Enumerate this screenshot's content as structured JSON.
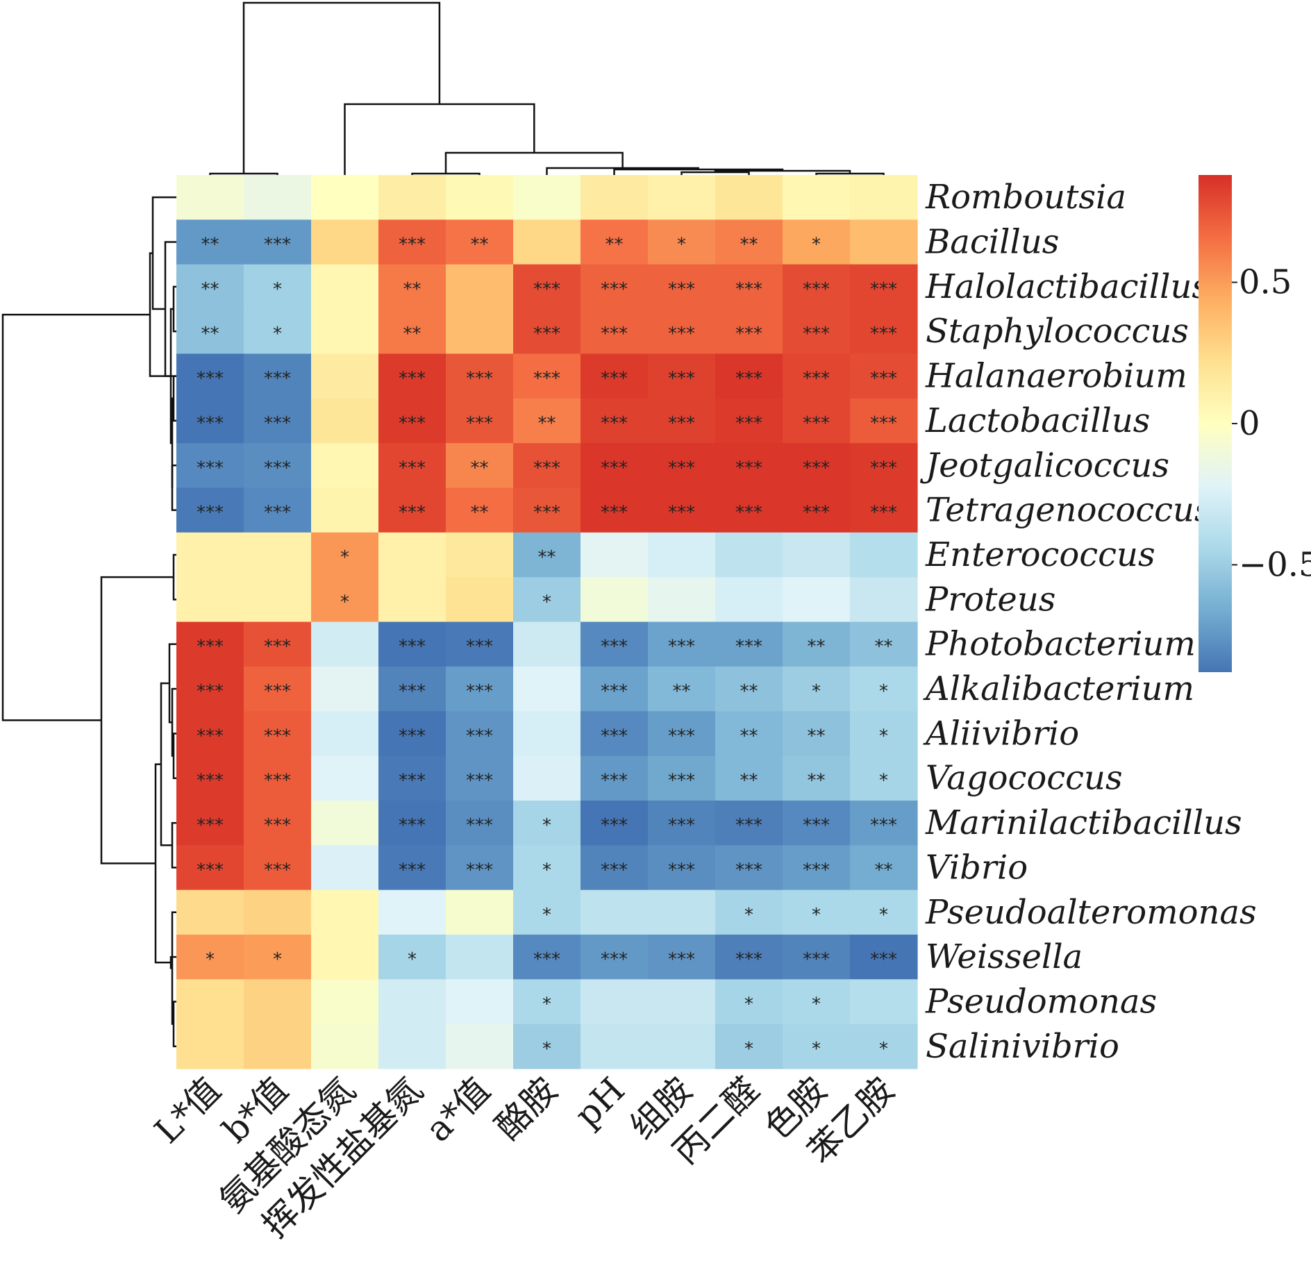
{
  "chart_data": {
    "type": "heatmap",
    "columns": [
      "L*值",
      "b*值",
      "氨基酸态氮",
      "挥发性盐基氮",
      "a*值",
      "酪胺",
      "pH",
      "组胺",
      "丙二醛",
      "色胺",
      "苯乙胺"
    ],
    "rows": [
      "Romboutsia",
      "Bacillus",
      "Halolactibacillus",
      "Staphylococcus",
      "Halanaerobium",
      "Lactobacillus",
      "Jeotgalicoccus",
      "Tetragenococcus",
      "Enterococcus",
      "Proteus",
      "Photobacterium",
      "Alkalibacterium",
      "Aliivibrio",
      "Vagococcus",
      "Marinilactibacillus",
      "Vibrio",
      "Pseudoalteromonas",
      "Weissella",
      "Pseudomonas",
      "Salinivibrio"
    ],
    "values": [
      [
        -0.08,
        -0.14,
        0.0,
        0.12,
        0.04,
        -0.04,
        0.14,
        0.1,
        0.18,
        0.06,
        0.08
      ],
      [
        -0.74,
        -0.74,
        0.26,
        0.7,
        0.64,
        0.26,
        0.64,
        0.56,
        0.6,
        0.46,
        0.38
      ],
      [
        -0.56,
        -0.48,
        0.06,
        0.62,
        0.38,
        0.78,
        0.7,
        0.7,
        0.7,
        0.78,
        0.8
      ],
      [
        -0.56,
        -0.48,
        0.06,
        0.62,
        0.38,
        0.78,
        0.7,
        0.7,
        0.7,
        0.78,
        0.8
      ],
      [
        -0.88,
        -0.82,
        0.14,
        0.84,
        0.74,
        0.66,
        0.84,
        0.82,
        0.86,
        0.8,
        0.78
      ],
      [
        -0.88,
        -0.82,
        0.18,
        0.84,
        0.74,
        0.6,
        0.82,
        0.82,
        0.84,
        0.8,
        0.72
      ],
      [
        -0.8,
        -0.78,
        0.06,
        0.8,
        0.58,
        0.76,
        0.86,
        0.86,
        0.86,
        0.86,
        0.84
      ],
      [
        -0.86,
        -0.8,
        0.08,
        0.8,
        0.66,
        0.74,
        0.86,
        0.86,
        0.86,
        0.86,
        0.84
      ],
      [
        0.1,
        0.1,
        0.52,
        0.1,
        0.16,
        -0.62,
        -0.2,
        -0.26,
        -0.36,
        -0.32,
        -0.4
      ],
      [
        0.1,
        0.1,
        0.52,
        0.1,
        0.2,
        -0.5,
        -0.1,
        -0.18,
        -0.26,
        -0.22,
        -0.32
      ],
      [
        0.84,
        0.76,
        -0.28,
        -0.88,
        -0.86,
        -0.3,
        -0.8,
        -0.7,
        -0.7,
        -0.62,
        -0.56
      ],
      [
        0.84,
        0.7,
        -0.2,
        -0.82,
        -0.72,
        -0.22,
        -0.7,
        -0.6,
        -0.56,
        -0.5,
        -0.44
      ],
      [
        0.84,
        0.72,
        -0.26,
        -0.88,
        -0.76,
        -0.26,
        -0.8,
        -0.72,
        -0.6,
        -0.56,
        -0.46
      ],
      [
        0.84,
        0.72,
        -0.22,
        -0.86,
        -0.76,
        -0.24,
        -0.74,
        -0.68,
        -0.6,
        -0.54,
        -0.46
      ],
      [
        0.84,
        0.72,
        -0.1,
        -0.88,
        -0.78,
        -0.46,
        -0.88,
        -0.82,
        -0.84,
        -0.8,
        -0.72
      ],
      [
        0.8,
        0.72,
        -0.24,
        -0.86,
        -0.76,
        -0.44,
        -0.82,
        -0.78,
        -0.76,
        -0.72,
        -0.66
      ],
      [
        0.24,
        0.28,
        0.06,
        -0.22,
        -0.06,
        -0.44,
        -0.36,
        -0.36,
        -0.46,
        -0.44,
        -0.44
      ],
      [
        0.52,
        0.5,
        0.06,
        -0.46,
        -0.34,
        -0.8,
        -0.74,
        -0.76,
        -0.84,
        -0.82,
        -0.88
      ],
      [
        0.22,
        0.28,
        -0.04,
        -0.28,
        -0.22,
        -0.44,
        -0.32,
        -0.32,
        -0.46,
        -0.44,
        -0.4
      ],
      [
        0.22,
        0.28,
        -0.06,
        -0.28,
        -0.18,
        -0.5,
        -0.34,
        -0.34,
        -0.5,
        -0.46,
        -0.46
      ]
    ],
    "significance": [
      [
        "",
        "",
        "",
        "",
        "",
        "",
        "",
        "",
        "",
        "",
        ""
      ],
      [
        "**",
        "***",
        "",
        "***",
        "**",
        "",
        "**",
        "*",
        "**",
        "*",
        ""
      ],
      [
        "**",
        "*",
        "",
        "**",
        "",
        "***",
        "***",
        "***",
        "***",
        "***",
        "***"
      ],
      [
        "**",
        "*",
        "",
        "**",
        "",
        "***",
        "***",
        "***",
        "***",
        "***",
        "***"
      ],
      [
        "***",
        "***",
        "",
        "***",
        "***",
        "***",
        "***",
        "***",
        "***",
        "***",
        "***"
      ],
      [
        "***",
        "***",
        "",
        "***",
        "***",
        "**",
        "***",
        "***",
        "***",
        "***",
        "***"
      ],
      [
        "***",
        "***",
        "",
        "***",
        "**",
        "***",
        "***",
        "***",
        "***",
        "***",
        "***"
      ],
      [
        "***",
        "***",
        "",
        "***",
        "**",
        "***",
        "***",
        "***",
        "***",
        "***",
        "***"
      ],
      [
        "",
        "",
        "*",
        "",
        "",
        "**",
        "",
        "",
        "",
        "",
        ""
      ],
      [
        "",
        "",
        "*",
        "",
        "",
        "*",
        "",
        "",
        "",
        "",
        ""
      ],
      [
        "***",
        "***",
        "",
        "***",
        "***",
        "",
        "***",
        "***",
        "***",
        "**",
        "**"
      ],
      [
        "***",
        "***",
        "",
        "***",
        "***",
        "",
        "***",
        "**",
        "**",
        "*",
        "*"
      ],
      [
        "***",
        "***",
        "",
        "***",
        "***",
        "",
        "***",
        "***",
        "**",
        "**",
        "*"
      ],
      [
        "***",
        "***",
        "",
        "***",
        "***",
        "",
        "***",
        "***",
        "**",
        "**",
        "*"
      ],
      [
        "***",
        "***",
        "",
        "***",
        "***",
        "*",
        "***",
        "***",
        "***",
        "***",
        "***"
      ],
      [
        "***",
        "***",
        "",
        "***",
        "***",
        "*",
        "***",
        "***",
        "***",
        "***",
        "**"
      ],
      [
        "",
        "",
        "",
        "",
        "",
        "*",
        "",
        "",
        "*",
        "*",
        "*"
      ],
      [
        "*",
        "*",
        "",
        "*",
        "",
        "***",
        "***",
        "***",
        "***",
        "***",
        "***"
      ],
      [
        "",
        "",
        "",
        "",
        "",
        "*",
        "",
        "",
        "*",
        "*",
        ""
      ],
      [
        "",
        "",
        "",
        "",
        "",
        "*",
        "",
        "",
        "*",
        "*",
        "*"
      ]
    ],
    "colorbar": {
      "range": [
        -0.88,
        0.88
      ],
      "ticks": [
        0.5,
        0,
        -0.5
      ],
      "tick_labels": [
        "0.5",
        "0",
        "−0.5"
      ],
      "colors": [
        "#4575b4",
        "#74add1",
        "#abd9e9",
        "#e0f3f8",
        "#ffffbf",
        "#fee090",
        "#fdae61",
        "#f46d43",
        "#d73027"
      ]
    }
  }
}
